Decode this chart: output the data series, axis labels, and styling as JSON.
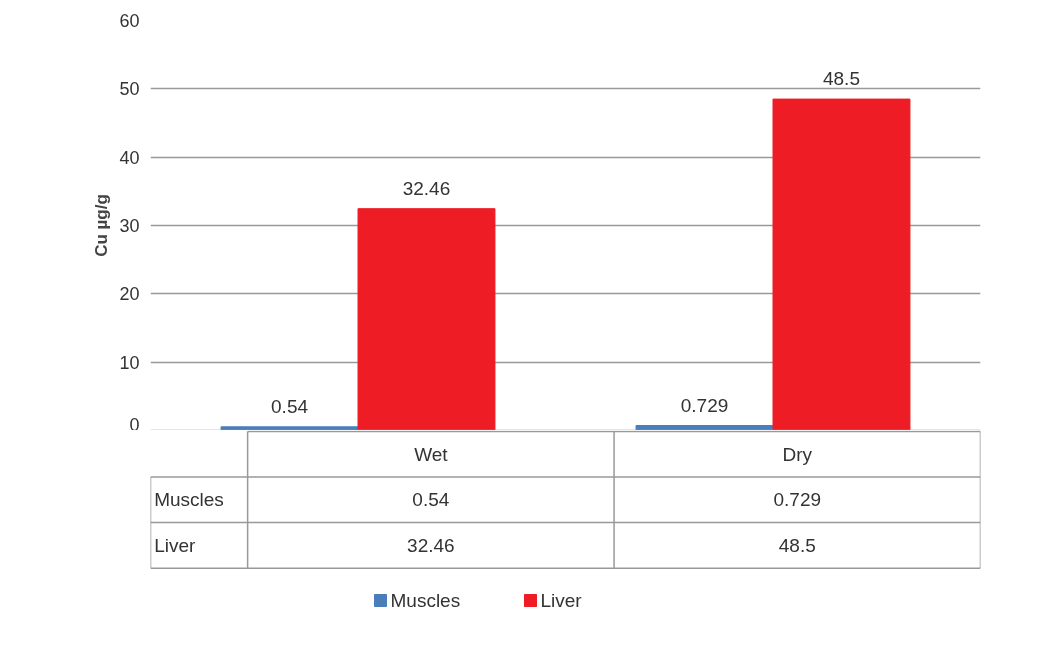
{
  "chart_data": {
    "type": "bar",
    "ylabel": "Cu µg/g",
    "categories": [
      "Wet",
      "Dry"
    ],
    "series": [
      {
        "name": "Muscles",
        "color": "#4a7ebb",
        "values": [
          0.54,
          0.729
        ],
        "value_labels": [
          "0.54",
          "0.729"
        ]
      },
      {
        "name": "Liver",
        "color": "#ee1c24",
        "values": [
          32.46,
          48.5
        ],
        "value_labels": [
          "32.46",
          "48.5"
        ]
      }
    ],
    "annotations": [
      "0.54",
      "0.729",
      "32.46",
      "48.5"
    ],
    "ylim": [
      0,
      60
    ],
    "yticks": [
      0,
      10,
      20,
      30,
      40,
      50,
      60
    ],
    "grid": "y",
    "legend": "bottom"
  }
}
